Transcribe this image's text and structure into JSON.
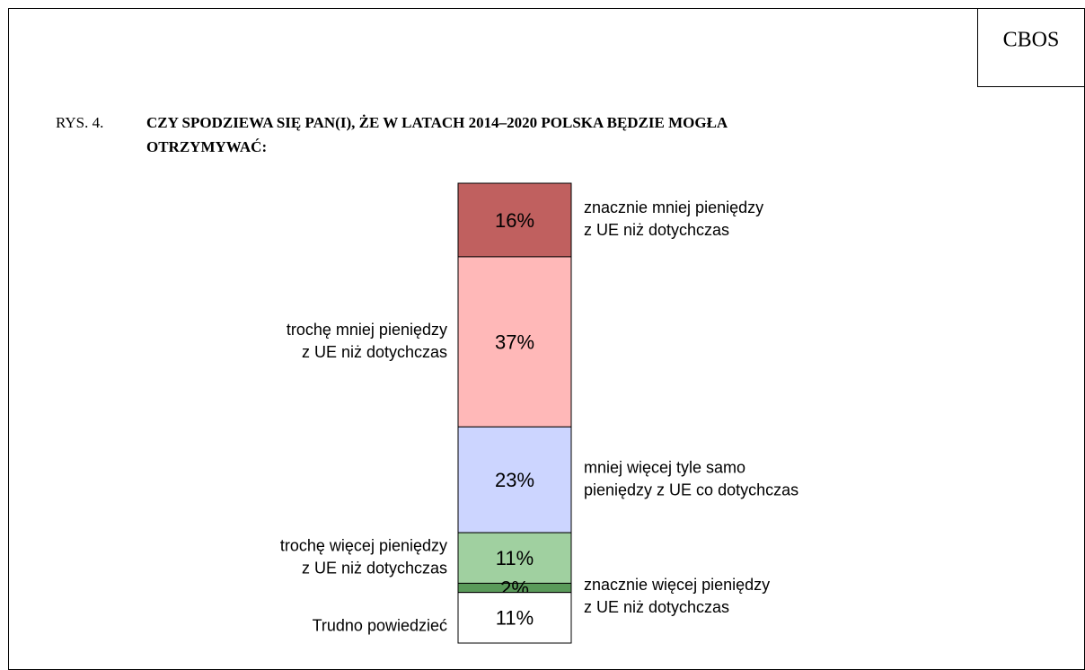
{
  "source": "CBOS",
  "chart_data": {
    "type": "stacked-bar",
    "figure_label": "RYS. 4.",
    "title": [
      "CZY SPODZIEWA SIĘ PAN(I), ŻE W LATACH 2014–2020 POLSKA BĘDZIE MOGŁA",
      "OTRZYMYWAĆ:"
    ],
    "categories": [
      [
        "znacznie mniej pieniędzy",
        "z UE niż dotychczas"
      ],
      [
        "trochę mniej pieniędzy",
        "z UE niż dotychczas"
      ],
      [
        "mniej więcej tyle samo",
        "pieniędzy z UE co dotychczas"
      ],
      [
        "trochę więcej pieniędzy",
        "z UE niż dotychczas"
      ],
      [
        "znacznie więcej pieniędzy",
        "z UE niż dotychczas"
      ],
      [
        "Trudno powiedzieć"
      ]
    ],
    "values": [
      16,
      37,
      23,
      11,
      2,
      11
    ],
    "value_labels": [
      "16%",
      "37%",
      "23%",
      "11%",
      "2%",
      "11%"
    ],
    "colors": [
      "#c0605f",
      "#ffb8b8",
      "#ccd5ff",
      "#a0d0a0",
      "#5a9a5a",
      "#ffffff"
    ]
  }
}
